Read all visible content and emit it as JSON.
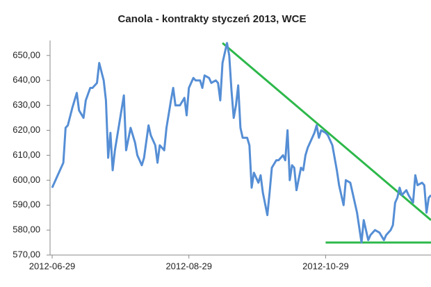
{
  "chart_data": {
    "type": "line",
    "title": "Canola - kontrakty styczeń 2013, WCE",
    "x": [
      "2012-06-29",
      "2012-07-04",
      "2012-07-05",
      "2012-07-06",
      "2012-07-08",
      "2012-07-10",
      "2012-07-11",
      "2012-07-13",
      "2012-07-14",
      "2012-07-16",
      "2012-07-17",
      "2012-07-19",
      "2012-07-20",
      "2012-07-22",
      "2012-07-23",
      "2012-07-24",
      "2012-07-25",
      "2012-07-26",
      "2012-07-27",
      "2012-07-29",
      "2012-07-31",
      "2012-08-01",
      "2012-08-03",
      "2012-08-05",
      "2012-08-06",
      "2012-08-08",
      "2012-08-09",
      "2012-08-11",
      "2012-08-12",
      "2012-08-14",
      "2012-08-15",
      "2012-08-16",
      "2012-08-18",
      "2012-08-19",
      "2012-08-21",
      "2012-08-22",
      "2012-08-23",
      "2012-08-25",
      "2012-08-27",
      "2012-08-28",
      "2012-08-29",
      "2012-08-31",
      "2012-09-01",
      "2012-09-03",
      "2012-09-04",
      "2012-09-05",
      "2012-09-07",
      "2012-09-08",
      "2012-09-10",
      "2012-09-11",
      "2012-09-12",
      "2012-09-13",
      "2012-09-15",
      "2012-09-16",
      "2012-09-17",
      "2012-09-18",
      "2012-09-19",
      "2012-09-20",
      "2012-09-21",
      "2012-09-22",
      "2012-09-24",
      "2012-09-25",
      "2012-09-26",
      "2012-09-27",
      "2012-09-29",
      "2012-09-30",
      "2012-10-01",
      "2012-10-03",
      "2012-10-04",
      "2012-10-05",
      "2012-10-07",
      "2012-10-08",
      "2012-10-10",
      "2012-10-11",
      "2012-10-12",
      "2012-10-13",
      "2012-10-14",
      "2012-10-15",
      "2012-10-16",
      "2012-10-18",
      "2012-10-19",
      "2012-10-20",
      "2012-10-21",
      "2012-10-22",
      "2012-10-24",
      "2012-10-25",
      "2012-10-26",
      "2012-10-27",
      "2012-10-29",
      "2012-10-30",
      "2012-11-01",
      "2012-11-03",
      "2012-11-04",
      "2012-11-06",
      "2012-11-07",
      "2012-11-09",
      "2012-11-10",
      "2012-11-12",
      "2012-11-14",
      "2012-11-15",
      "2012-11-17",
      "2012-11-18",
      "2012-11-20",
      "2012-11-22",
      "2012-11-24",
      "2012-11-25",
      "2012-11-27",
      "2012-11-28",
      "2012-11-29",
      "2012-11-30",
      "2012-12-01",
      "2012-12-02",
      "2012-12-04",
      "2012-12-05",
      "2012-12-07",
      "2012-12-08",
      "2012-12-09",
      "2012-12-11",
      "2012-12-12",
      "2012-12-13",
      "2012-12-14",
      "2012-12-15"
    ],
    "series": [
      {
        "color": "#558ed5",
        "values": [
          597,
          607,
          621,
          622,
          629,
          635,
          628,
          625,
          632,
          637,
          637,
          639,
          647,
          640,
          632,
          609,
          619,
          604,
          612,
          623,
          634,
          612,
          621,
          615,
          610,
          606,
          609,
          622,
          618,
          614,
          607,
          614,
          612,
          621,
          632,
          637,
          630,
          630,
          633,
          626,
          637,
          641,
          640,
          640,
          637,
          642,
          641,
          639,
          640,
          639,
          632,
          647,
          655,
          650,
          636,
          625,
          630,
          638,
          621,
          617,
          617,
          614,
          597,
          603,
          599,
          602,
          595,
          586,
          595,
          605,
          608,
          608,
          610,
          608,
          620,
          600,
          606,
          605,
          596,
          605,
          604,
          610,
          613,
          615,
          619,
          622,
          617,
          620,
          619,
          618,
          614,
          604,
          598,
          590,
          600,
          599,
          595,
          587,
          575,
          584,
          576,
          578,
          580,
          579,
          576,
          578,
          580,
          582,
          591,
          593,
          597,
          594,
          596,
          594,
          591,
          602,
          598,
          599,
          598,
          587,
          593,
          594
        ]
      }
    ],
    "trend_lines": [
      {
        "color": "#2db84a",
        "x": [
          "2012-09-13",
          "2012-12-15"
        ],
        "values": [
          655,
          584
        ]
      },
      {
        "color": "#2db84a",
        "x": [
          "2012-10-29",
          "2012-12-15"
        ],
        "values": [
          575,
          575
        ]
      }
    ],
    "xlim": [
      "2012-06-29",
      "2012-12-15"
    ],
    "xticks": [
      "2012-06-29",
      "2012-08-29",
      "2012-10-29"
    ],
    "ylim": [
      570,
      656
    ],
    "yticks": [
      {
        "value": 570,
        "label": "570,00"
      },
      {
        "value": 580,
        "label": "580,00"
      },
      {
        "value": 590,
        "label": "590,00"
      },
      {
        "value": 600,
        "label": "600,00"
      },
      {
        "value": 610,
        "label": "610,00"
      },
      {
        "value": 620,
        "label": "620,00"
      },
      {
        "value": 630,
        "label": "630,00"
      },
      {
        "value": 640,
        "label": "640,00"
      },
      {
        "value": 650,
        "label": "650,00"
      }
    ],
    "grid": false
  }
}
